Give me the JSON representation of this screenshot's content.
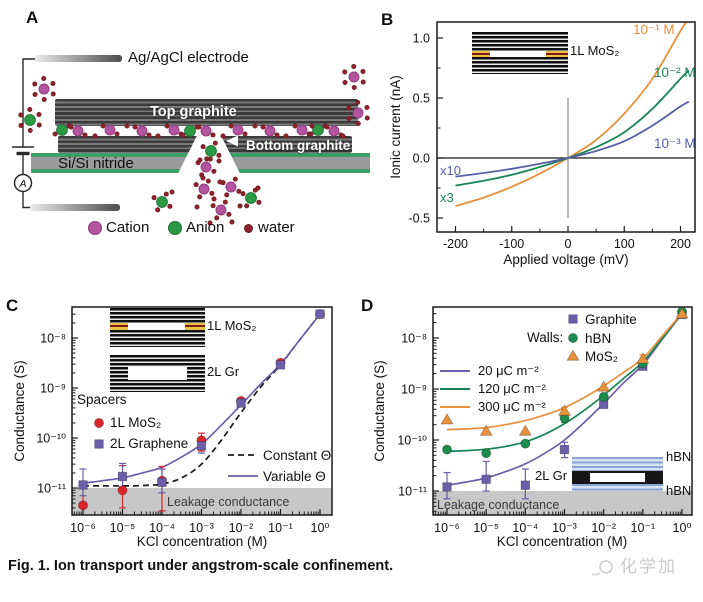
{
  "figure": {
    "caption": "Fig. 1. Ion transport under angstrom-scale confinement.",
    "watermark_text": "化学加"
  },
  "panel_a": {
    "letter": "A",
    "electrode_label": "Ag/AgCl electrode",
    "top_graphite_label": "Top graphite",
    "bottom_graphite_label": "Bottom graphite",
    "substrate_label": "Si/Si nitride",
    "ammeter_label": "A",
    "legend": {
      "cation": "Cation",
      "anion": "Anion",
      "water": "water"
    },
    "colors": {
      "cation": "#b3549e",
      "cation_edge": "#8c3b7c",
      "anion": "#2c9a45",
      "anion_edge": "#1e7030",
      "water": "#8d232e",
      "water_edge": "#6a161f"
    }
  },
  "chart_data": [
    {
      "panel_letter": "B",
      "type": "line",
      "xlabel": "Applied voltage (mV)",
      "ylabel": "Ionic current (nA)",
      "xlim": [
        -232,
        227
      ],
      "ylim": [
        -0.62,
        1.13
      ],
      "x_ticks": [
        "-200",
        "-100",
        "0",
        "100",
        "200"
      ],
      "x_tick_values": [
        -200,
        -100,
        0,
        100,
        200
      ],
      "y_ticks": [
        "1.0",
        "0.5",
        "0.0",
        "-0.5"
      ],
      "y_tick_values": [
        1.0,
        0.5,
        0.0,
        -0.5
      ],
      "inset_label": "1L MoS₂",
      "series": [
        {
          "name": "10⁻¹ M",
          "color": "#e8913d",
          "scale_label": "",
          "x": [
            -200,
            -150,
            -100,
            -50,
            0,
            50,
            100,
            150,
            200,
            215
          ],
          "y": [
            -0.4,
            -0.33,
            -0.24,
            -0.13,
            0,
            0.15,
            0.37,
            0.66,
            1.06,
            1.16
          ]
        },
        {
          "name": "10⁻² M",
          "color": "#178556",
          "scale_label": "x3",
          "x": [
            -200,
            -150,
            -100,
            -50,
            0,
            50,
            100,
            150,
            200,
            215
          ],
          "y": [
            -0.23,
            -0.19,
            -0.14,
            -0.075,
            0,
            0.09,
            0.215,
            0.41,
            0.66,
            0.73
          ]
        },
        {
          "name": "10⁻³ M",
          "color": "#5560a4",
          "scale_label": "x10",
          "x": [
            -200,
            -150,
            -100,
            -50,
            0,
            50,
            100,
            150,
            200,
            215
          ],
          "y": [
            -0.155,
            -0.125,
            -0.09,
            -0.048,
            0,
            0.058,
            0.14,
            0.27,
            0.43,
            0.47
          ]
        }
      ]
    },
    {
      "panel_letter": "C",
      "type": "scatter",
      "x_scale": "log",
      "y_scale": "log",
      "xlabel": "KCl concentration (M)",
      "ylabel": "Conductance (S)",
      "x_ticks": [
        "10⁻⁶",
        "10⁻⁵",
        "10⁻⁴",
        "10⁻³",
        "10⁻²",
        "10⁻¹",
        "10⁰"
      ],
      "y_ticks": [
        "10⁻⁸",
        "10⁻⁹",
        "10⁻¹⁰",
        "10⁻¹¹"
      ],
      "y_tick_values": [
        1e-08,
        1e-09,
        1e-10,
        1e-11
      ],
      "x_values": [
        1e-06,
        1e-05,
        0.0001,
        0.001,
        0.01,
        0.1,
        1
      ],
      "legend_title": "Spacers",
      "leakage_label": "Leakage conductance",
      "leakage_threshold": 1e-11,
      "inset_labels": [
        "1L MoS₂",
        "2L Gr"
      ],
      "series": [
        {
          "name": "1L MoS₂",
          "marker": "circle",
          "color": "#d9262c",
          "y": [
            4.5e-12,
            9e-12,
            1.4e-11,
            9e-11,
            5.5e-10,
            3.2e-09,
            3e-08
          ],
          "y_err": [
            [
              4e-12,
              1.05e-11
            ],
            [
              4e-12,
              2.8e-11
            ],
            [
              3.5e-12,
              2.7e-11
            ],
            [
              5.5e-11,
              1.25e-10
            ],
            null,
            null,
            null
          ]
        },
        {
          "name": "2L Graphene",
          "marker": "square",
          "color": "#6a5fa8",
          "y": [
            1.15e-11,
            1.7e-11,
            1.3e-11,
            7e-11,
            5e-10,
            2.9e-09,
            3e-08
          ],
          "y_err": [
            [
              7e-12,
              2.4e-11
            ],
            [
              1.05e-11,
              3.1e-11
            ],
            [
              8e-12,
              2.4e-11
            ],
            [
              5e-11,
              9.5e-11
            ],
            null,
            [
              2.5e-09,
              3.4e-09
            ],
            null
          ]
        }
      ],
      "curves": [
        {
          "name": "Constant Θ",
          "style": "dashed",
          "color": "#1a1a1a",
          "x_log10": [
            -6,
            -5.5,
            -5,
            -4.5,
            -4,
            -3.5,
            -3,
            -2.5,
            -2,
            -1.5,
            -1,
            -0.5,
            0
          ],
          "y": [
            1.1e-11,
            1.1e-11,
            1.1e-11,
            1.12e-11,
            1.2e-11,
            1.6e-11,
            3e-11,
            9e-11,
            3.2e-10,
            1.05e-09,
            2.9e-09,
            9.5e-09,
            3e-08
          ]
        },
        {
          "name": "Variable Θ",
          "style": "solid",
          "color": "#6a5fa8",
          "x_log10": [
            -6,
            -5.5,
            -5,
            -4.5,
            -4,
            -3.5,
            -3,
            -2.5,
            -2,
            -1.5,
            -1,
            -0.5,
            0
          ],
          "y": [
            1.25e-11,
            1.4e-11,
            1.6e-11,
            2e-11,
            2.6e-11,
            4.2e-11,
            7.5e-11,
            1.8e-10,
            4.6e-10,
            1.2e-09,
            3e-09,
            9.5e-09,
            3e-08
          ]
        }
      ]
    },
    {
      "panel_letter": "D",
      "type": "scatter",
      "x_scale": "log",
      "y_scale": "log",
      "xlabel": "KCl concentration (M)",
      "ylabel": "Conductance (S)",
      "x_ticks": [
        "10⁻⁶",
        "10⁻⁵",
        "10⁻⁴",
        "10⁻³",
        "10⁻²",
        "10⁻¹",
        "10⁰"
      ],
      "y_ticks": [
        "10⁻⁸",
        "10⁻⁹",
        "10⁻¹⁰",
        "10⁻¹¹"
      ],
      "y_tick_values": [
        1e-08,
        1e-09,
        1e-10,
        1e-11
      ],
      "x_values": [
        1e-06,
        1e-05,
        0.0001,
        0.001,
        0.01,
        0.1,
        1
      ],
      "legend_title": "Walls:",
      "leakage_label": "Leakage conductance",
      "leakage_threshold": 1e-11,
      "inset_labels": [
        "2L Gr",
        "hBN",
        "hBN"
      ],
      "series": [
        {
          "name": "Graphite",
          "marker": "square",
          "color": "#6a5fa8",
          "y": [
            1.2e-11,
            1.7e-11,
            1.3e-11,
            6.5e-11,
            5e-10,
            2.8e-09,
            2.9e-08
          ],
          "y_err": [
            [
              7e-12,
              2.3e-11
            ],
            [
              1e-11,
              3.8e-11
            ],
            [
              7e-12,
              2.7e-11
            ],
            [
              4.5e-11,
              9e-11
            ],
            null,
            null,
            null
          ]
        },
        {
          "name": "hBN",
          "marker": "circle",
          "color": "#1d8a4e",
          "y": [
            6.5e-11,
            5.5e-11,
            8.5e-11,
            2.7e-10,
            7e-10,
            3.2e-09,
            3.3e-08
          ],
          "y_err": [
            null,
            null,
            null,
            [
              2.2e-10,
              3.3e-10
            ],
            null,
            null,
            null
          ]
        },
        {
          "name": "MoS₂",
          "marker": "triangle",
          "color": "#e8913d",
          "y": [
            2.5e-10,
            1.5e-10,
            1.5e-10,
            3.7e-10,
            1.1e-09,
            3.9e-09,
            3e-08
          ],
          "y_err": [
            null,
            null,
            null,
            [
              3.1e-10,
              4.4e-10
            ],
            null,
            [
              3.4e-09,
              4.7e-09
            ],
            null
          ]
        }
      ],
      "curves": [
        {
          "name": "20 μC m⁻²",
          "style": "solid",
          "color": "#6a5fa8",
          "x_log10": [
            -6,
            -5.5,
            -5,
            -4.5,
            -4,
            -3.5,
            -3,
            -2.5,
            -2,
            -1.5,
            -1,
            -0.5,
            0
          ],
          "y": [
            1.3e-11,
            1.5e-11,
            1.8e-11,
            2.4e-11,
            3.4e-11,
            5.5e-11,
            1e-10,
            2.2e-10,
            5.2e-10,
            1.3e-09,
            3e-09,
            9.5e-09,
            3e-08
          ]
        },
        {
          "name": "120 μC m⁻²",
          "style": "solid",
          "color": "#178556",
          "x_log10": [
            -6,
            -5.5,
            -5,
            -4.5,
            -4,
            -3.5,
            -3,
            -2.5,
            -2,
            -1.5,
            -1,
            -0.5,
            0
          ],
          "y": [
            6e-11,
            6.2e-11,
            6.6e-11,
            7.5e-11,
            9.2e-11,
            1.3e-10,
            2.1e-10,
            3.8e-10,
            7.5e-10,
            1.6e-09,
            3.4e-09,
            1e-08,
            3.1e-08
          ]
        },
        {
          "name": "300 μC m⁻²",
          "style": "solid",
          "color": "#e8913d",
          "x_log10": [
            -6,
            -5.5,
            -5,
            -4.5,
            -4,
            -3.5,
            -3,
            -2.5,
            -2,
            -1.5,
            -1,
            -0.5,
            0
          ],
          "y": [
            1.6e-10,
            1.65e-10,
            1.75e-10,
            2e-10,
            2.4e-10,
            3.1e-10,
            4.3e-10,
            6.8e-10,
            1.15e-09,
            2.1e-09,
            4e-09,
            1.1e-08,
            3.1e-08
          ]
        }
      ]
    }
  ]
}
